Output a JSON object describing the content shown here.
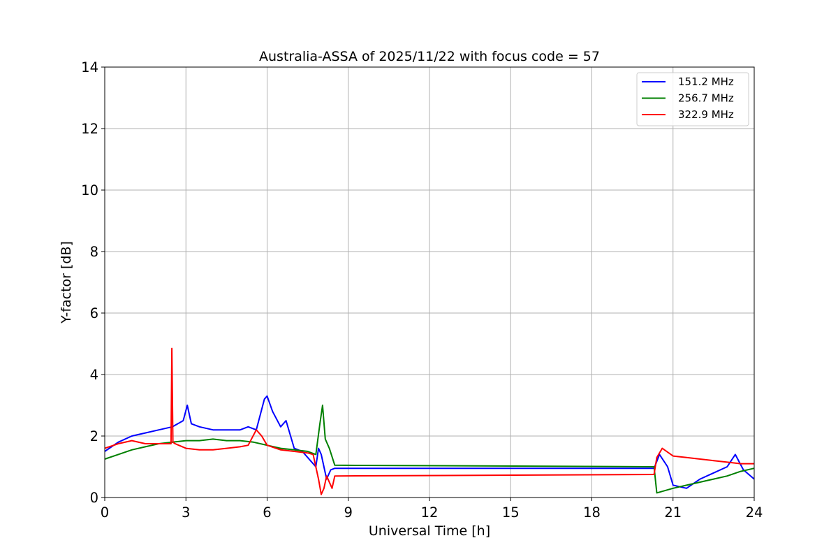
{
  "chart_data": {
    "type": "line",
    "title": "Australia-ASSA of 2025/11/22 with focus code = 57",
    "xlabel": "Universal Time [h]",
    "ylabel": "Y-factor [dB]",
    "xlim": [
      0,
      24
    ],
    "ylim": [
      0,
      14
    ],
    "xticks": [
      "0",
      "3",
      "6",
      "9",
      "12",
      "15",
      "18",
      "21",
      "24"
    ],
    "yticks": [
      "0",
      "2",
      "4",
      "6",
      "8",
      "10",
      "12",
      "14"
    ],
    "grid": true,
    "legend_position": "top-right",
    "series": [
      {
        "name": "151.2 MHz",
        "color": "#0000ff",
        "x": [
          0,
          0.5,
          1,
          1.5,
          2,
          2.5,
          2.9,
          3.05,
          3.2,
          3.5,
          4,
          4.5,
          5,
          5.3,
          5.6,
          5.9,
          6.0,
          6.2,
          6.5,
          6.7,
          7.0,
          7.3,
          7.6,
          7.8,
          7.9,
          8.0,
          8.2,
          8.35,
          8.5,
          20.3,
          20.5,
          20.8,
          21.0,
          21.5,
          22.0,
          22.5,
          23.0,
          23.3,
          23.6,
          24
        ],
        "y": [
          1.5,
          1.8,
          2.0,
          2.1,
          2.2,
          2.3,
          2.5,
          3.0,
          2.4,
          2.3,
          2.2,
          2.2,
          2.2,
          2.3,
          2.2,
          3.2,
          3.3,
          2.8,
          2.3,
          2.5,
          1.6,
          1.5,
          1.2,
          1.0,
          1.6,
          1.4,
          0.6,
          0.9,
          0.95,
          0.95,
          1.4,
          1.0,
          0.4,
          0.3,
          0.6,
          0.8,
          1.0,
          1.4,
          0.9,
          0.6
        ]
      },
      {
        "name": "256.7 MHz",
        "color": "#008000",
        "x": [
          0,
          0.5,
          1,
          1.5,
          2,
          2.5,
          3,
          3.5,
          4,
          4.5,
          5,
          5.5,
          6,
          6.5,
          7,
          7.5,
          7.8,
          7.95,
          8.05,
          8.15,
          8.3,
          8.5,
          20.3,
          20.4,
          21,
          21.5,
          22,
          22.5,
          23,
          23.5,
          24
        ],
        "y": [
          1.25,
          1.4,
          1.55,
          1.65,
          1.75,
          1.8,
          1.85,
          1.85,
          1.9,
          1.85,
          1.85,
          1.8,
          1.7,
          1.6,
          1.55,
          1.5,
          1.4,
          2.4,
          3.0,
          1.9,
          1.6,
          1.05,
          1.0,
          0.15,
          0.3,
          0.4,
          0.5,
          0.6,
          0.7,
          0.85,
          0.95
        ]
      },
      {
        "name": "322.9 MHz",
        "color": "#ff0000",
        "x": [
          0,
          0.5,
          1,
          1.5,
          2,
          2.45,
          2.48,
          2.52,
          2.6,
          3,
          3.5,
          4,
          4.5,
          5,
          5.3,
          5.6,
          5.8,
          6.0,
          6.5,
          7,
          7.5,
          7.7,
          7.9,
          8.0,
          8.1,
          8.2,
          8.4,
          8.5,
          20.3,
          20.4,
          20.6,
          21,
          21.5,
          22,
          22.5,
          23,
          23.5,
          24
        ],
        "y": [
          1.6,
          1.75,
          1.85,
          1.75,
          1.75,
          1.75,
          4.85,
          1.8,
          1.75,
          1.6,
          1.55,
          1.55,
          1.6,
          1.65,
          1.7,
          2.2,
          2.0,
          1.7,
          1.55,
          1.5,
          1.45,
          1.4,
          0.6,
          0.1,
          0.3,
          0.7,
          0.3,
          0.7,
          0.75,
          1.3,
          1.6,
          1.35,
          1.3,
          1.25,
          1.2,
          1.15,
          1.1,
          1.1
        ]
      }
    ]
  }
}
